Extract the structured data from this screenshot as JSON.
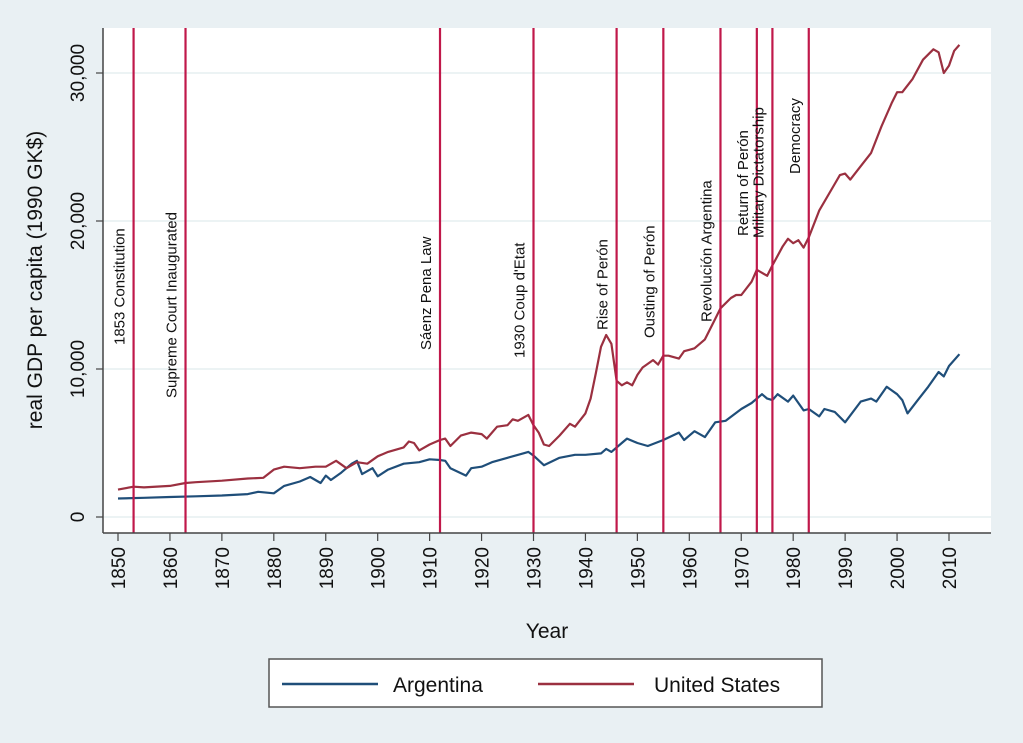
{
  "chart_data": {
    "type": "line",
    "title": "",
    "xlabel": "Year",
    "ylabel": "real GDP per capita (1990 GK$)",
    "xlim": [
      1847,
      2028
    ],
    "ylim": [
      -1000,
      33000
    ],
    "grid": true,
    "legend_position": "bottom",
    "x_ticks": [
      1850,
      1860,
      1870,
      1880,
      1890,
      1900,
      1910,
      1920,
      1930,
      1940,
      1950,
      1960,
      1970,
      1980,
      1990,
      2000,
      2010
    ],
    "x_tick_labels": [
      "1850",
      "1860",
      "1870",
      "1880",
      "1890",
      "1900",
      "1910",
      "1920",
      "1930",
      "1940",
      "1950",
      "1960",
      "1970",
      "1980",
      "1990",
      "2000",
      "2010"
    ],
    "y_ticks": [
      0,
      10000,
      20000,
      30000
    ],
    "y_tick_labels": [
      "0",
      "10,000",
      "20,000",
      "30,000"
    ],
    "colors": {
      "argentina": "#1f4e79",
      "united_states": "#9b3040",
      "event_line": "#c0184a"
    },
    "series": [
      {
        "name": "Argentina",
        "key": "argentina",
        "x": [
          1850,
          1855,
          1860,
          1865,
          1870,
          1875,
          1877,
          1880,
          1882,
          1885,
          1887,
          1889,
          1890,
          1891,
          1893,
          1895,
          1896,
          1897,
          1899,
          1900,
          1902,
          1905,
          1908,
          1910,
          1912,
          1913,
          1914,
          1917,
          1918,
          1920,
          1922,
          1925,
          1928,
          1929,
          1930,
          1932,
          1935,
          1938,
          1940,
          1943,
          1944,
          1945,
          1947,
          1948,
          1950,
          1952,
          1955,
          1958,
          1959,
          1961,
          1963,
          1965,
          1967,
          1970,
          1972,
          1974,
          1975,
          1976,
          1977,
          1979,
          1980,
          1981,
          1982,
          1983,
          1985,
          1986,
          1988,
          1990,
          1993,
          1995,
          1996,
          1998,
          2000,
          2001,
          2002,
          2004,
          2006,
          2008,
          2009,
          2010,
          2012
        ],
        "values": [
          1250,
          1300,
          1350,
          1400,
          1450,
          1550,
          1700,
          1600,
          2100,
          2400,
          2700,
          2300,
          2800,
          2500,
          3000,
          3600,
          3800,
          2900,
          3300,
          2750,
          3200,
          3600,
          3700,
          3900,
          3850,
          3800,
          3300,
          2800,
          3300,
          3400,
          3700,
          4000,
          4300,
          4400,
          4150,
          3500,
          4000,
          4200,
          4200,
          4300,
          4600,
          4400,
          5000,
          5300,
          5000,
          4800,
          5200,
          5700,
          5200,
          5800,
          5400,
          6400,
          6500,
          7300,
          7700,
          8300,
          8000,
          7900,
          8300,
          7800,
          8200,
          7700,
          7200,
          7300,
          6800,
          7300,
          7100,
          6400,
          7800,
          8000,
          7800,
          8800,
          8300,
          7900,
          7000,
          7900,
          8800,
          9800,
          9500,
          10200,
          11000
        ]
      },
      {
        "name": "United States",
        "key": "united_states",
        "x": [
          1850,
          1853,
          1855,
          1860,
          1863,
          1865,
          1870,
          1875,
          1878,
          1880,
          1882,
          1885,
          1888,
          1890,
          1892,
          1894,
          1896,
          1898,
          1900,
          1902,
          1905,
          1906,
          1907,
          1908,
          1910,
          1912,
          1913,
          1914,
          1916,
          1918,
          1920,
          1921,
          1923,
          1925,
          1926,
          1927,
          1929,
          1930,
          1931,
          1932,
          1933,
          1935,
          1937,
          1938,
          1940,
          1941,
          1942,
          1943,
          1944,
          1945,
          1946,
          1947,
          1948,
          1949,
          1950,
          1951,
          1953,
          1954,
          1955,
          1956,
          1958,
          1959,
          1960,
          1961,
          1963,
          1965,
          1966,
          1968,
          1969,
          1970,
          1972,
          1973,
          1974,
          1975,
          1976,
          1978,
          1979,
          1980,
          1981,
          1982,
          1983,
          1985,
          1988,
          1989,
          1990,
          1991,
          1993,
          1995,
          1997,
          1999,
          2000,
          2001,
          2003,
          2005,
          2007,
          2008,
          2009,
          2010,
          2011,
          2012
        ],
        "values": [
          1850,
          2050,
          2000,
          2100,
          2300,
          2350,
          2450,
          2600,
          2650,
          3200,
          3400,
          3300,
          3400,
          3400,
          3800,
          3300,
          3700,
          3600,
          4100,
          4400,
          4700,
          5100,
          5000,
          4500,
          4900,
          5200,
          5300,
          4800,
          5500,
          5700,
          5600,
          5300,
          6100,
          6200,
          6600,
          6500,
          6900,
          6200,
          5700,
          4900,
          4800,
          5500,
          6300,
          6100,
          7000,
          8000,
          9700,
          11500,
          12300,
          11700,
          9200,
          8900,
          9100,
          8900,
          9600,
          10100,
          10600,
          10300,
          10900,
          10900,
          10700,
          11200,
          11300,
          11400,
          12000,
          13400,
          14100,
          14800,
          15000,
          15000,
          15900,
          16700,
          16500,
          16300,
          17000,
          18300,
          18800,
          18500,
          18700,
          18200,
          18900,
          20700,
          22500,
          23100,
          23200,
          22800,
          23700,
          24600,
          26400,
          28000,
          28700,
          28700,
          29600,
          30900,
          31600,
          31400,
          30000,
          30500,
          31500,
          31900
        ]
      }
    ],
    "events": [
      {
        "year": 1853,
        "label": "1853 Constitution"
      },
      {
        "year": 1863,
        "label": "Supreme Court Inaugurated"
      },
      {
        "year": 1912,
        "label": "Sáenz Pena Law"
      },
      {
        "year": 1930,
        "label": "1930 Coup d'Etat"
      },
      {
        "year": 1946,
        "label": "Rise of Perón"
      },
      {
        "year": 1955,
        "label": "Ousting of Perón"
      },
      {
        "year": 1966,
        "label": "Revolución Argentina"
      },
      {
        "year": 1973,
        "label": "Return of Perón"
      },
      {
        "year": 1976,
        "label": "Military Dictatorship"
      },
      {
        "year": 1983,
        "label": "Democracy"
      }
    ],
    "legend": [
      "Argentina",
      "United States"
    ]
  }
}
